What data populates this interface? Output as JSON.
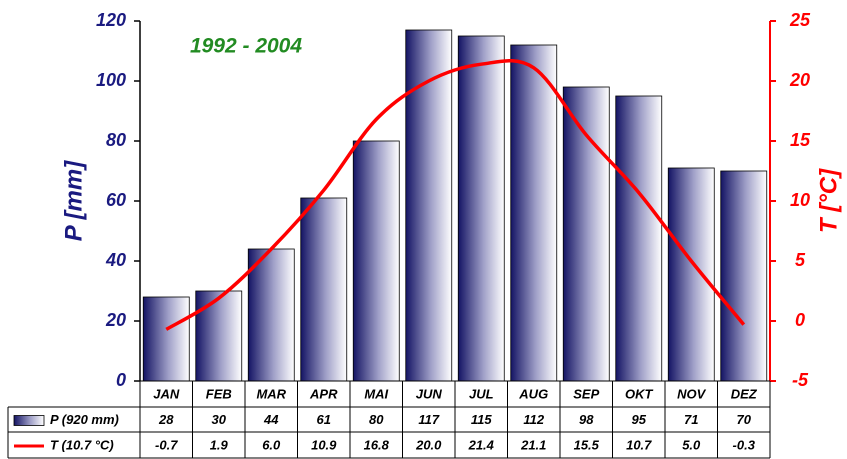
{
  "chart_data": {
    "type": "bar",
    "annotation": "1992 - 2004",
    "ylabel": "P [mm]",
    "y2label": "T [°C]",
    "categories": [
      "JAN",
      "FEB",
      "MAR",
      "APR",
      "MAI",
      "JUN",
      "JUL",
      "AUG",
      "SEP",
      "OKT",
      "NOV",
      "DEZ"
    ],
    "series": [
      {
        "name": "P (920 mm)",
        "type": "bar",
        "color": "#1a1a6e",
        "values": [
          28,
          30,
          44,
          61,
          80,
          117,
          115,
          112,
          98,
          95,
          71,
          70
        ]
      },
      {
        "name": "T (10.7 °C)",
        "type": "line",
        "axis": "y2",
        "color": "#ff0000",
        "values": [
          -0.7,
          1.9,
          6.0,
          10.9,
          16.8,
          20.0,
          21.4,
          21.1,
          15.5,
          10.7,
          5.0,
          -0.3
        ],
        "value_labels": [
          "-0.7",
          "1.9",
          "6.0",
          "10.9",
          "16.8",
          "20.0",
          "21.4",
          "21.1",
          "15.5",
          "10.7",
          "5.0",
          "-0.3"
        ]
      }
    ],
    "ylim": [
      0,
      120
    ],
    "yticks": [
      0,
      20,
      40,
      60,
      80,
      100,
      120
    ],
    "y2lim": [
      -5,
      25
    ],
    "y2ticks": [
      -5,
      0,
      5,
      10,
      15,
      20,
      25
    ],
    "grid": false
  }
}
